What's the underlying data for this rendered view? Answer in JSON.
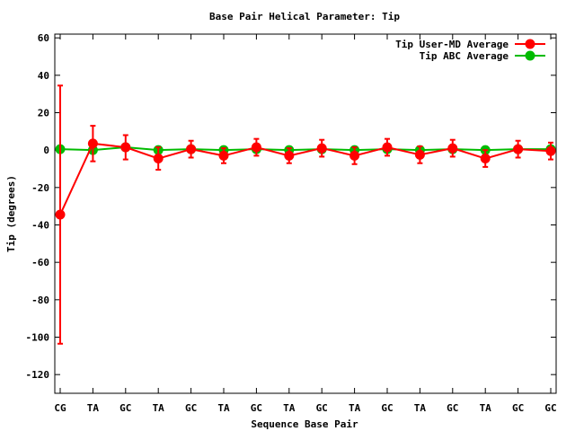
{
  "chart_data": {
    "type": "line",
    "title": "Base Pair Helical Parameter: Tip",
    "xlabel": "Sequence Base Pair",
    "ylabel": "Tip (degrees)",
    "categories": [
      "CG",
      "TA",
      "GC",
      "TA",
      "GC",
      "TA",
      "GC",
      "TA",
      "GC",
      "TA",
      "GC",
      "TA",
      "GC",
      "TA",
      "GC",
      "GC"
    ],
    "ylim": [
      -130,
      62
    ],
    "yticks": [
      60,
      40,
      20,
      0,
      -20,
      -40,
      -60,
      -80,
      -100,
      -120
    ],
    "grid": false,
    "legend_position": "top-right",
    "series": [
      {
        "name": "Tip User-MD Average",
        "color": "#ff0000",
        "values": [
          -34.5,
          3.5,
          1.5,
          -4.5,
          0.5,
          -3.0,
          1.5,
          -3.0,
          1.0,
          -3.0,
          1.5,
          -2.5,
          1.0,
          -4.5,
          0.5,
          -0.5
        ],
        "errors": [
          69,
          9.5,
          6.5,
          6,
          4.5,
          4,
          4.5,
          4,
          4.5,
          4.5,
          4.5,
          4.5,
          4.5,
          4.5,
          4.5,
          4.5
        ]
      },
      {
        "name": "Tip ABC Average",
        "color": "#00bb00",
        "values": [
          0.5,
          0.0,
          1.5,
          0.0,
          0.5,
          0.0,
          0.5,
          0.0,
          0.5,
          0.0,
          0.5,
          0.0,
          0.5,
          0.0,
          0.5,
          0.5
        ],
        "errors": [
          0,
          0,
          0,
          0,
          0,
          0,
          0,
          0,
          0,
          0,
          0,
          0,
          0,
          0,
          0,
          0
        ]
      }
    ]
  }
}
